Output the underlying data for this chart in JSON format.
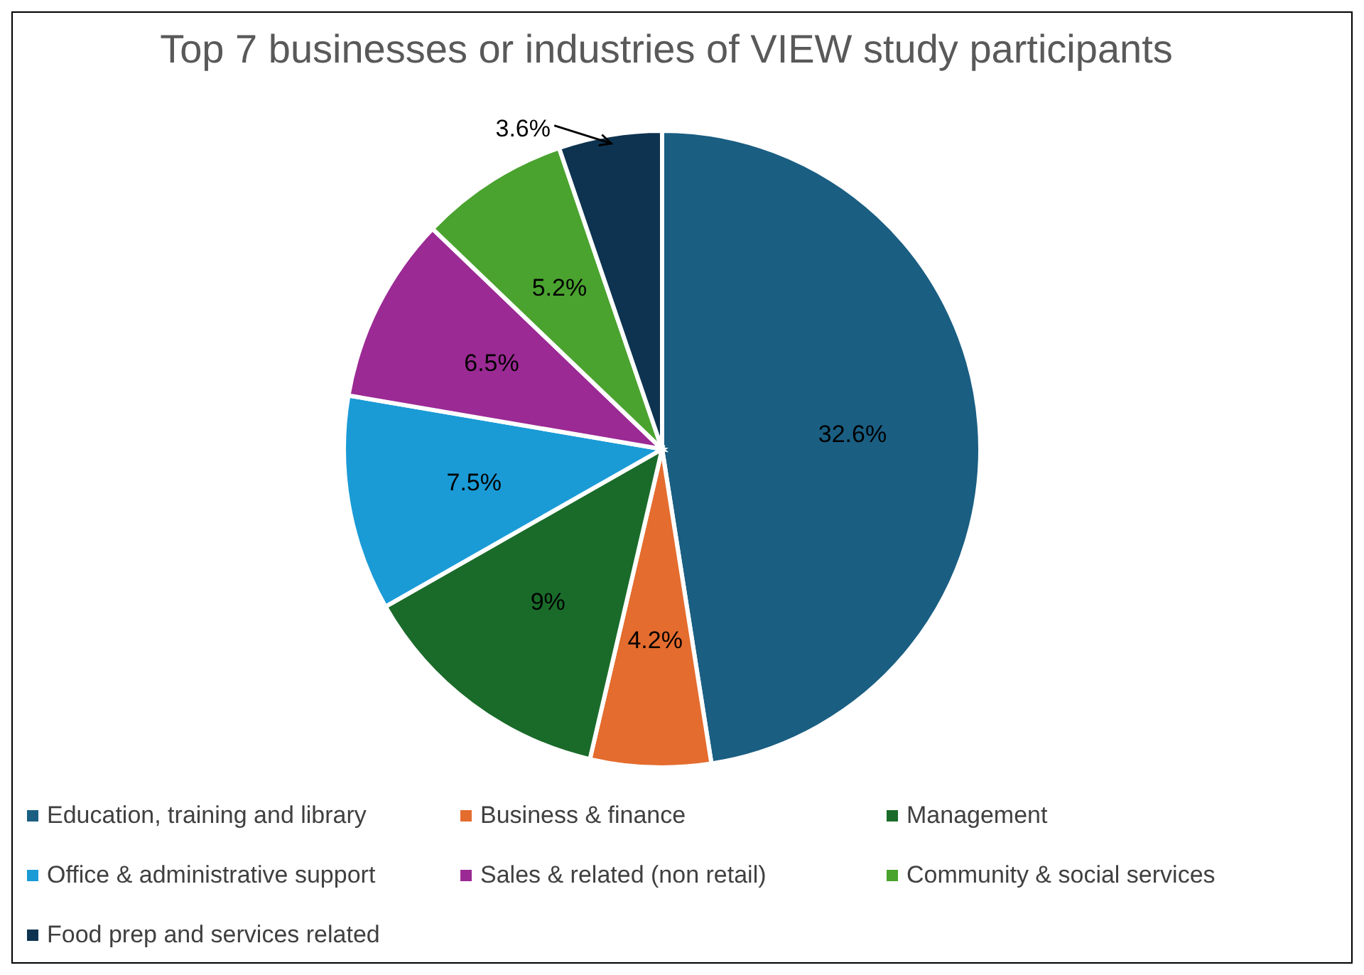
{
  "chart_data": {
    "type": "pie",
    "title": "Top 7 businesses or industries of VIEW study participants",
    "categories": [
      "Education, training and library",
      "Business & finance",
      "Management",
      "Office & administrative support",
      "Sales & related (non retail)",
      "Community & social services",
      "Food prep and services related"
    ],
    "values": [
      32.6,
      4.2,
      9,
      7.5,
      6.5,
      5.2,
      3.6
    ],
    "colors": [
      "#1a5e82",
      "#e46c2e",
      "#1a6b2a",
      "#1a9bd6",
      "#9b2a94",
      "#4aa32f",
      "#0d3350"
    ],
    "value_labels": [
      "32.6%",
      "4.2%",
      "9%",
      "7.5%",
      "6.5%",
      "5.2%",
      "3.6%"
    ],
    "legend": "bottom"
  }
}
